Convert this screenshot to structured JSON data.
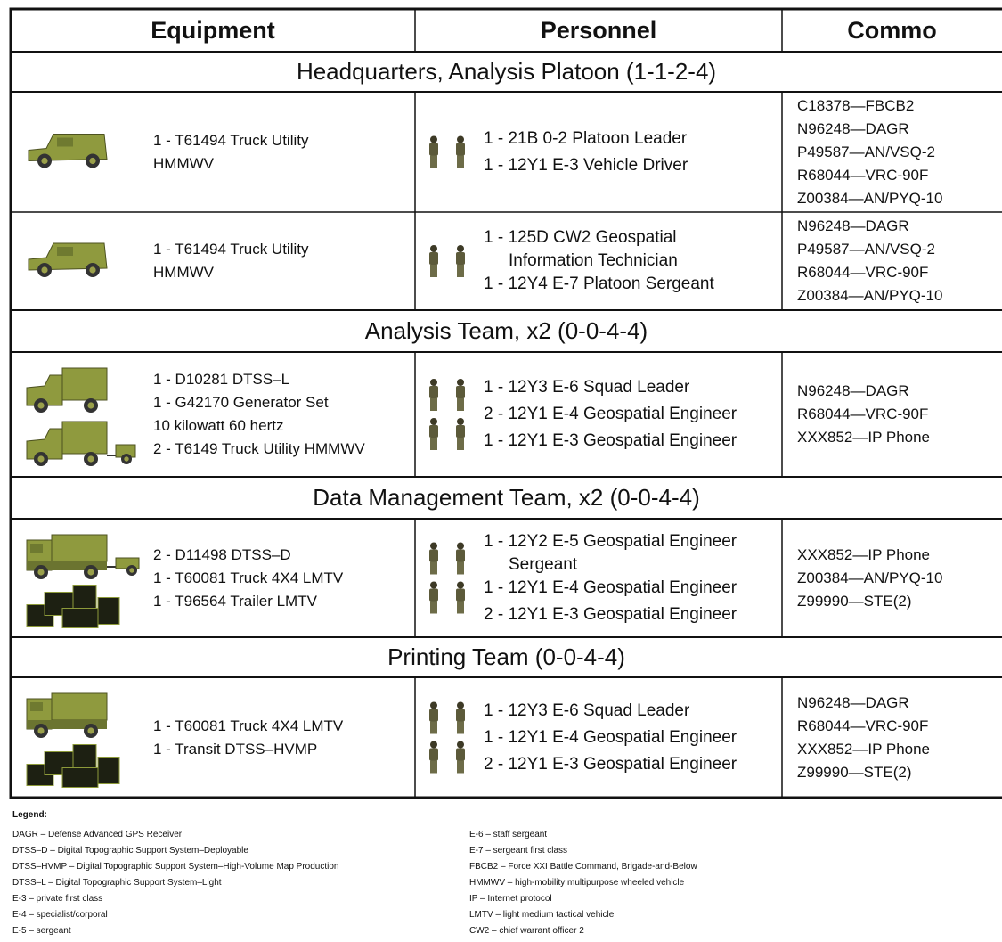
{
  "table": {
    "headers": [
      "Equipment",
      "Personnel",
      "Commo"
    ],
    "sections": [
      {
        "title": "Headquarters, Analysis Platoon (1-1-2-4)",
        "rows": [
          {
            "equipment": [
              "1 - T61494 Truck Utility",
              "HMMWV"
            ],
            "personnel": [
              [
                "1 - 21B 0-2 Platoon Leader"
              ],
              [
                "1 - 12Y1 E-3 Vehicle Driver"
              ]
            ],
            "commo": [
              "C18378—FBCB2",
              "N96248—DAGR",
              "P49587—AN/VSQ-2",
              "R68044—VRC-90F",
              "Z00384—AN/PYQ-10"
            ]
          },
          {
            "equipment": [
              "1 - T61494 Truck Utility",
              "HMMWV"
            ],
            "personnel": [
              [
                "1 - 125D CW2 Geospatial",
                "Information Technician"
              ],
              [
                "1 - 12Y4 E-7 Platoon Sergeant"
              ]
            ],
            "commo": [
              "N96248—DAGR",
              "P49587—AN/VSQ-2",
              "R68044—VRC-90F",
              "Z00384—AN/PYQ-10"
            ]
          }
        ]
      },
      {
        "title": "Analysis Team, x2 (0-0-4-4)",
        "rows": [
          {
            "equipment": [
              "1 - D10281 DTSS–L",
              "1 - G42170 Generator Set",
              "10 kilowatt 60 hertz",
              "2 - T6149 Truck Utility HMMWV"
            ],
            "personnel": [
              [
                "1 - 12Y3 E-6 Squad Leader"
              ],
              [
                "2 - 12Y1 E-4 Geospatial Engineer"
              ],
              [
                "1 - 12Y1 E-3 Geospatial Engineer"
              ]
            ],
            "commo": [
              "N96248—DAGR",
              "R68044—VRC-90F",
              "XXX852—IP Phone"
            ]
          }
        ]
      },
      {
        "title": "Data Management Team, x2 (0-0-4-4)",
        "rows": [
          {
            "equipment": [
              "2 - D11498 DTSS–D",
              "1 - T60081 Truck 4X4 LMTV",
              "1 - T96564 Trailer LMTV"
            ],
            "personnel": [
              [
                "1 - 12Y2 E-5 Geospatial Engineer",
                "Sergeant"
              ],
              [
                "1 - 12Y1 E-4 Geospatial Engineer"
              ],
              [
                "2 - 12Y1 E-3 Geospatial Engineer"
              ]
            ],
            "commo": [
              "XXX852—IP Phone",
              "Z00384—AN/PYQ-10",
              "Z99990—STE(2)"
            ]
          }
        ]
      },
      {
        "title": "Printing Team (0-0-4-4)",
        "rows": [
          {
            "equipment": [
              "1 - T60081 Truck 4X4 LMTV",
              "1 - Transit DTSS–HVMP"
            ],
            "personnel": [
              [
                "1 - 12Y3 E-6 Squad Leader"
              ],
              [
                "1 - 12Y1 E-4 Geospatial Engineer"
              ],
              [
                "2 - 12Y1 E-3 Geospatial Engineer"
              ]
            ],
            "commo": [
              "N96248—DAGR",
              "R68044—VRC-90F",
              "XXX852—IP Phone",
              "Z99990—STE(2)"
            ]
          }
        ]
      }
    ]
  },
  "legend": {
    "title": "Legend:",
    "left": [
      "DAGR – Defense Advanced GPS Receiver",
      "DTSS–D – Digital Topographic Support System–Deployable",
      "DTSS–HVMP – Digital Topographic Support System–High-Volume Map Production",
      "DTSS–L – Digital Topographic Support System–Light",
      "E-3 – private first class",
      "E-4 – specialist/corporal",
      "E-5 – sergeant"
    ],
    "right": [
      "E-6 – staff sergeant",
      "E-7 – sergeant first class",
      "FBCB2 – Force XXI Battle Command, Brigade-and-Below",
      "HMMWV – high-mobility multipurpose wheeled vehicle",
      "IP – Internet protocol",
      "LMTV – light medium tactical vehicle",
      "CW2 – chief warrant officer 2"
    ]
  }
}
